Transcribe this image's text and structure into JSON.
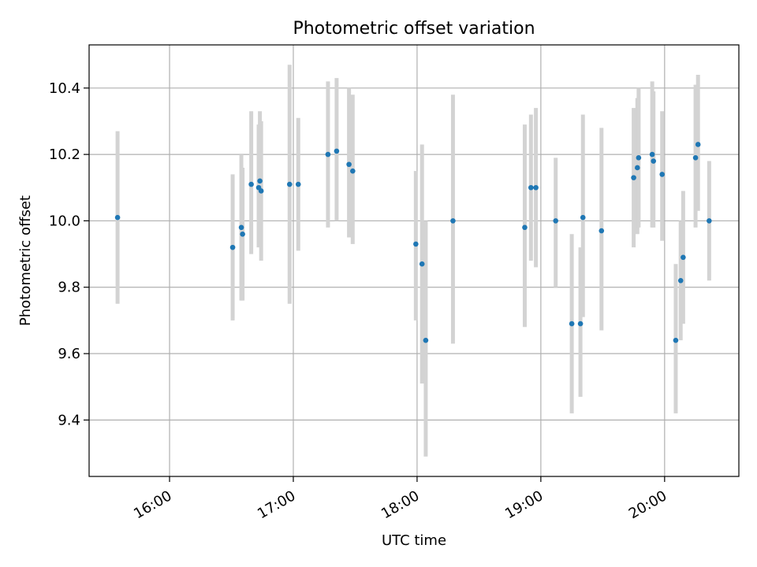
{
  "chart_data": {
    "type": "scatter",
    "title": "Photometric offset variation",
    "xlabel": "UTC time",
    "ylabel": "Photometric offset",
    "x_unit": "hours (UTC, decimal)",
    "xlim": [
      15.35,
      20.6
    ],
    "ylim": [
      9.23,
      10.53
    ],
    "x_ticks": [
      {
        "value": 16,
        "label": "16:00"
      },
      {
        "value": 17,
        "label": "17:00"
      },
      {
        "value": 18,
        "label": "18:00"
      },
      {
        "value": 19,
        "label": "19:00"
      },
      {
        "value": 20,
        "label": "20:00"
      }
    ],
    "y_ticks": [
      {
        "value": 9.4,
        "label": "9.4"
      },
      {
        "value": 9.6,
        "label": "9.6"
      },
      {
        "value": 9.8,
        "label": "9.8"
      },
      {
        "value": 10.0,
        "label": "10.0"
      },
      {
        "value": 10.2,
        "label": "10.2"
      },
      {
        "value": 10.4,
        "label": "10.4"
      }
    ],
    "grid": true,
    "legend": "none",
    "colors": {
      "point": "#1f77b4",
      "errorbar": "#d3d3d3",
      "grid": "#b0b0b0"
    },
    "points": [
      {
        "x": 15.58,
        "y": 10.01,
        "lo": 9.75,
        "hi": 10.27
      },
      {
        "x": 16.51,
        "y": 9.92,
        "lo": 9.7,
        "hi": 10.14
      },
      {
        "x": 16.58,
        "y": 9.98,
        "lo": 9.76,
        "hi": 10.2
      },
      {
        "x": 16.59,
        "y": 9.96,
        "lo": 9.76,
        "hi": 10.16
      },
      {
        "x": 16.66,
        "y": 10.11,
        "lo": 9.9,
        "hi": 10.33
      },
      {
        "x": 16.72,
        "y": 10.1,
        "lo": 9.92,
        "hi": 10.29
      },
      {
        "x": 16.73,
        "y": 10.12,
        "lo": 9.93,
        "hi": 10.33
      },
      {
        "x": 16.74,
        "y": 10.09,
        "lo": 9.88,
        "hi": 10.3
      },
      {
        "x": 16.97,
        "y": 10.11,
        "lo": 9.75,
        "hi": 10.47
      },
      {
        "x": 17.04,
        "y": 10.11,
        "lo": 9.91,
        "hi": 10.31
      },
      {
        "x": 17.28,
        "y": 10.2,
        "lo": 9.98,
        "hi": 10.42
      },
      {
        "x": 17.35,
        "y": 10.21,
        "lo": 10.0,
        "hi": 10.43
      },
      {
        "x": 17.45,
        "y": 10.17,
        "lo": 9.95,
        "hi": 10.4
      },
      {
        "x": 17.48,
        "y": 10.15,
        "lo": 9.93,
        "hi": 10.38
      },
      {
        "x": 17.99,
        "y": 9.93,
        "lo": 9.7,
        "hi": 10.15
      },
      {
        "x": 18.04,
        "y": 9.87,
        "lo": 9.51,
        "hi": 10.23
      },
      {
        "x": 18.07,
        "y": 9.64,
        "lo": 9.29,
        "hi": 10.0
      },
      {
        "x": 18.29,
        "y": 10.0,
        "lo": 9.63,
        "hi": 10.38
      },
      {
        "x": 18.87,
        "y": 9.98,
        "lo": 9.68,
        "hi": 10.29
      },
      {
        "x": 18.92,
        "y": 10.1,
        "lo": 9.88,
        "hi": 10.32
      },
      {
        "x": 18.96,
        "y": 10.1,
        "lo": 9.86,
        "hi": 10.34
      },
      {
        "x": 19.12,
        "y": 10.0,
        "lo": 9.8,
        "hi": 10.19
      },
      {
        "x": 19.25,
        "y": 9.69,
        "lo": 9.42,
        "hi": 9.96
      },
      {
        "x": 19.32,
        "y": 9.69,
        "lo": 9.47,
        "hi": 9.92
      },
      {
        "x": 19.34,
        "y": 10.01,
        "lo": 9.71,
        "hi": 10.32
      },
      {
        "x": 19.49,
        "y": 9.97,
        "lo": 9.67,
        "hi": 10.28
      },
      {
        "x": 19.75,
        "y": 10.13,
        "lo": 9.92,
        "hi": 10.34
      },
      {
        "x": 19.78,
        "y": 10.16,
        "lo": 9.96,
        "hi": 10.37
      },
      {
        "x": 19.79,
        "y": 10.19,
        "lo": 9.98,
        "hi": 10.4
      },
      {
        "x": 19.9,
        "y": 10.2,
        "lo": 9.98,
        "hi": 10.42
      },
      {
        "x": 19.91,
        "y": 10.18,
        "lo": 9.98,
        "hi": 10.39
      },
      {
        "x": 19.98,
        "y": 10.14,
        "lo": 9.94,
        "hi": 10.33
      },
      {
        "x": 20.09,
        "y": 9.64,
        "lo": 9.42,
        "hi": 9.87
      },
      {
        "x": 20.13,
        "y": 9.82,
        "lo": 9.64,
        "hi": 10.0
      },
      {
        "x": 20.15,
        "y": 9.89,
        "lo": 9.69,
        "hi": 10.09
      },
      {
        "x": 20.25,
        "y": 10.19,
        "lo": 9.98,
        "hi": 10.41
      },
      {
        "x": 20.27,
        "y": 10.23,
        "lo": 10.03,
        "hi": 10.44
      },
      {
        "x": 20.36,
        "y": 10.0,
        "lo": 9.82,
        "hi": 10.18
      }
    ]
  }
}
